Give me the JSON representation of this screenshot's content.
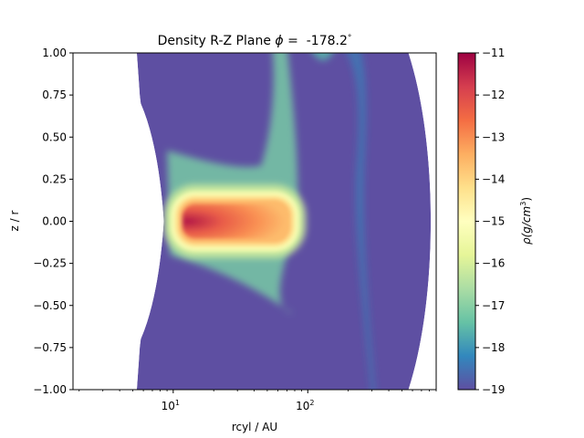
{
  "chart_data": {
    "type": "heatmap",
    "title_prefix": "Density R-Z Plane",
    "title_symbol": "ϕ",
    "title_eq": " =  ",
    "title_value": "-178.2",
    "title_deg": "°",
    "xlabel": "rcyl / AU",
    "ylabel": "z / r",
    "xscale": "log",
    "xlim": [
      1.8,
      900
    ],
    "ylim": [
      -1.0,
      1.0
    ],
    "x_ticks": [
      {
        "value": 10,
        "base": "10",
        "exp": "1"
      },
      {
        "value": 100,
        "base": "10",
        "exp": "2"
      }
    ],
    "y_ticks": [
      {
        "value": 1.0,
        "label": "1.00"
      },
      {
        "value": 0.75,
        "label": "0.75"
      },
      {
        "value": 0.5,
        "label": "0.50"
      },
      {
        "value": 0.25,
        "label": "0.25"
      },
      {
        "value": 0.0,
        "label": "0.00"
      },
      {
        "value": -0.25,
        "label": "−0.25"
      },
      {
        "value": -0.5,
        "label": "−0.50"
      },
      {
        "value": -0.75,
        "label": "−0.75"
      },
      {
        "value": -1.0,
        "label": "−1.00"
      }
    ],
    "colorbar": {
      "label_rho": "ρ",
      "label_rest": "(g/cm",
      "label_exp": "3",
      "label_close": ")",
      "min": -19,
      "max": -11,
      "colormap": "Spectral_r",
      "ticks": [
        {
          "value": -11,
          "label": "−11"
        },
        {
          "value": -12,
          "label": "−12"
        },
        {
          "value": -13,
          "label": "−13"
        },
        {
          "value": -14,
          "label": "−14"
        },
        {
          "value": -15,
          "label": "−15"
        },
        {
          "value": -16,
          "label": "−16"
        },
        {
          "value": -17,
          "label": "−17"
        },
        {
          "value": -18,
          "label": "−18"
        },
        {
          "value": -19,
          "label": "−19"
        }
      ],
      "stops": [
        "#5e4fa2",
        "#3288bd",
        "#66c2a5",
        "#abdda4",
        "#e6f598",
        "#ffffbf",
        "#fee08b",
        "#fdae61",
        "#f46d43",
        "#d53e4f",
        "#9e0142"
      ]
    },
    "field": {
      "background_log_rho": -19,
      "disk": {
        "r_inner": 11,
        "r_outer": 75,
        "z_half": 0.13,
        "peak_log_rho": -11.3,
        "edge_log_rho": -15.2
      },
      "envelope_log_rho": -17.2,
      "inner_radius_at_midplane": 8.5,
      "outer_radius_at_midplane": 900
    }
  }
}
